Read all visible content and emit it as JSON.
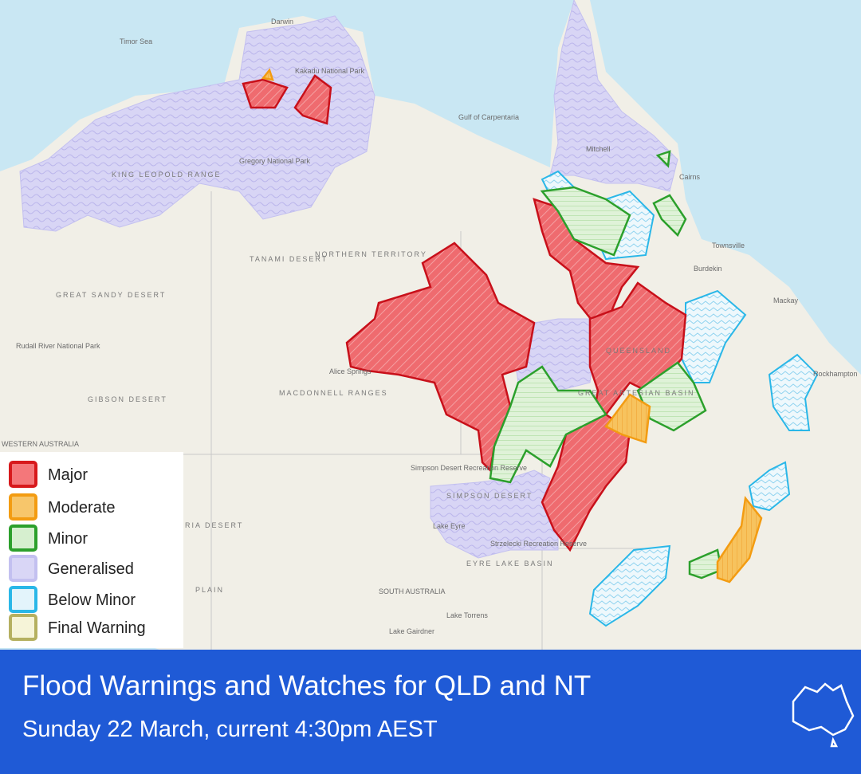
{
  "map": {
    "labels": [
      "Timor Sea",
      "Darwin",
      "Kakadu National Park",
      "Gulf of Carpentaria",
      "Cairns",
      "Townsville",
      "Mackay",
      "Rockhampton",
      "KING LEOPOLD RANGE",
      "Gregory National Park",
      "TANAMI DESERT",
      "NORTHERN TERRITORY",
      "GREAT SANDY DESERT",
      "Rudall River National Park",
      "Alice Springs",
      "MACDONNELL RANGES",
      "GIBSON DESERT",
      "WESTERN AUSTRALIA",
      "QUEENSLAND",
      "GREAT ARTESIAN BASIN",
      "Simpson Desert Recreation Reserve",
      "SIMPSON DESERT",
      "Lake Eyre",
      "Strzelecki Recreation Reserve",
      "EYRE LAKE BASIN",
      "SOUTH AUSTRALIA",
      "Lake Torrens",
      "Lake Gairdner",
      "RIA DESERT",
      "PLAIN",
      "Mitchell",
      "Burdekin",
      "Mackay"
    ]
  },
  "legend": {
    "items": [
      {
        "label": "Major",
        "color": "#d7191c",
        "fill": "#f4777a"
      },
      {
        "label": "Moderate",
        "color": "#f39c12",
        "fill": "#f7c66b"
      },
      {
        "label": "Minor",
        "color": "#2ca02c",
        "fill": "#d6efcf"
      },
      {
        "label": "Generalised",
        "color": "#c3c0f0",
        "fill": "#d9d6f6"
      },
      {
        "label": "Below Minor",
        "color": "#2ab7e8",
        "fill": "#e3f4fb"
      },
      {
        "label": "Final Warning",
        "color": "#b5b060",
        "fill": "#f6f4d8"
      }
    ]
  },
  "footer": {
    "title": "Flood Warnings and Watches for QLD and NT",
    "subtitle": "Sunday 22 March, current 4:30pm AEST"
  }
}
